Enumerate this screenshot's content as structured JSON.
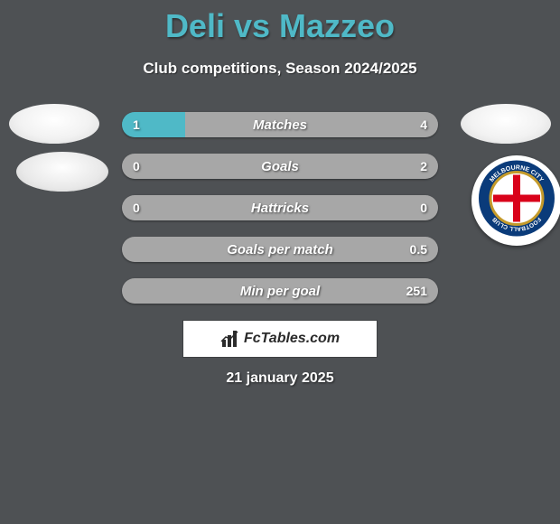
{
  "title": {
    "left": "Deli",
    "vs": " vs ",
    "right": "Mazzeo"
  },
  "subtitle": "Club competitions, Season 2024/2025",
  "date": "21 january 2025",
  "brand": "FcTables.com",
  "colors": {
    "accent_left": "#4fb9c7",
    "accent_right": "#a7a7a7",
    "bar_null": "#a7a7a7",
    "background": "#4e5154",
    "text": "#ffffff"
  },
  "badge_right": {
    "outer": "#0a3b7a",
    "inner": "#ffffff",
    "cross": "#d9021a",
    "text_top": "MELBOURNE CITY",
    "text_bottom": "FOOTBALL CLUB"
  },
  "rows": [
    {
      "label": "Matches",
      "left_val": "1",
      "right_val": "4",
      "left_pct": 20,
      "right_pct": 80,
      "null_row": false
    },
    {
      "label": "Goals",
      "left_val": "0",
      "right_val": "2",
      "left_pct": 0,
      "right_pct": 100,
      "null_row": false
    },
    {
      "label": "Hattricks",
      "left_val": "0",
      "right_val": "0",
      "left_pct": 0,
      "right_pct": 0,
      "null_row": true
    },
    {
      "label": "Goals per match",
      "left_val": "",
      "right_val": "0.5",
      "left_pct": 0,
      "right_pct": 100,
      "null_row": false
    },
    {
      "label": "Min per goal",
      "left_val": "",
      "right_val": "251",
      "left_pct": 0,
      "right_pct": 100,
      "null_row": false
    }
  ]
}
